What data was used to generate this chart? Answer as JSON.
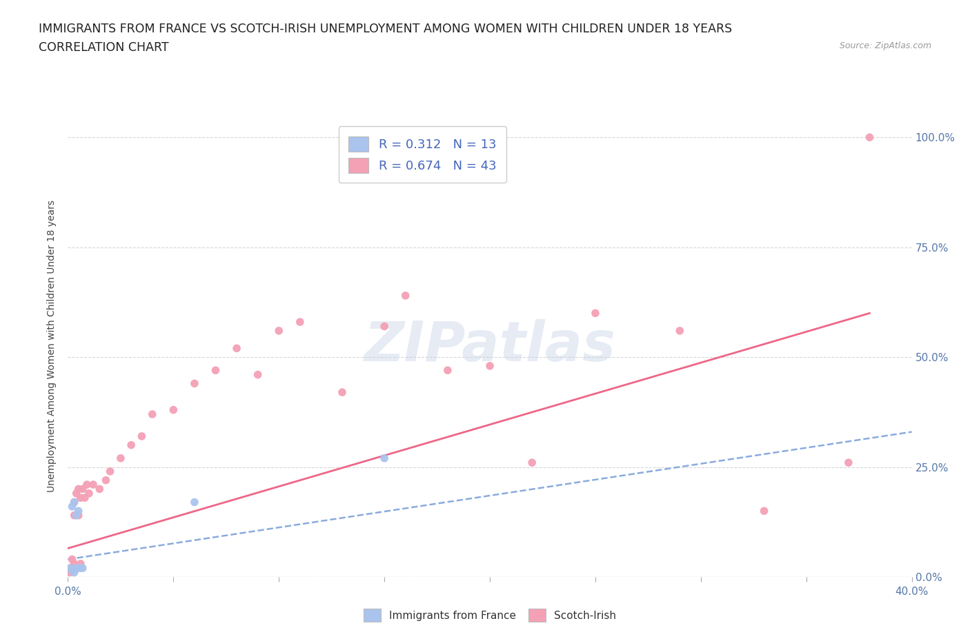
{
  "title_line1": "IMMIGRANTS FROM FRANCE VS SCOTCH-IRISH UNEMPLOYMENT AMONG WOMEN WITH CHILDREN UNDER 18 YEARS",
  "title_line2": "CORRELATION CHART",
  "source": "Source: ZipAtlas.com",
  "ylabel": "Unemployment Among Women with Children Under 18 years",
  "xlim": [
    0.0,
    0.4
  ],
  "ylim": [
    0.0,
    1.05
  ],
  "xticks": [
    0.0,
    0.05,
    0.1,
    0.15,
    0.2,
    0.25,
    0.3,
    0.35,
    0.4
  ],
  "yticks": [
    0.0,
    0.25,
    0.5,
    0.75,
    1.0
  ],
  "color_france": "#aac4ee",
  "color_scotch": "#f4a0b5",
  "color_france_line": "#8aabde",
  "color_scotch_line": "#ee6688",
  "france_x": [
    0.001,
    0.002,
    0.002,
    0.003,
    0.003,
    0.004,
    0.004,
    0.005,
    0.005,
    0.006,
    0.007,
    0.06,
    0.15
  ],
  "france_y": [
    0.02,
    0.015,
    0.16,
    0.01,
    0.17,
    0.02,
    0.14,
    0.02,
    0.15,
    0.02,
    0.02,
    0.17,
    0.27
  ],
  "scotch_x": [
    0.001,
    0.001,
    0.002,
    0.002,
    0.003,
    0.003,
    0.003,
    0.004,
    0.004,
    0.005,
    0.005,
    0.006,
    0.006,
    0.007,
    0.008,
    0.009,
    0.01,
    0.012,
    0.015,
    0.018,
    0.02,
    0.025,
    0.03,
    0.035,
    0.04,
    0.05,
    0.06,
    0.07,
    0.08,
    0.09,
    0.1,
    0.11,
    0.13,
    0.15,
    0.16,
    0.18,
    0.2,
    0.22,
    0.25,
    0.29,
    0.33,
    0.37,
    0.38
  ],
  "scotch_y": [
    0.01,
    0.02,
    0.02,
    0.04,
    0.03,
    0.14,
    0.17,
    0.02,
    0.19,
    0.14,
    0.2,
    0.18,
    0.03,
    0.2,
    0.18,
    0.21,
    0.19,
    0.21,
    0.2,
    0.22,
    0.24,
    0.27,
    0.3,
    0.32,
    0.37,
    0.38,
    0.44,
    0.47,
    0.52,
    0.46,
    0.56,
    0.58,
    0.42,
    0.57,
    0.64,
    0.47,
    0.48,
    0.26,
    0.6,
    0.56,
    0.15,
    0.26,
    1.0
  ],
  "watermark_text": "ZIPatlas",
  "background_color": "#ffffff",
  "grid_color": "#cccccc",
  "france_line_x0": 0.0,
  "france_line_x1": 0.4,
  "france_line_y0": 0.04,
  "france_line_y1": 0.33,
  "scotch_line_x0": 0.0,
  "scotch_line_x1": 0.38,
  "scotch_line_y0": 0.065,
  "scotch_line_y1": 0.6
}
